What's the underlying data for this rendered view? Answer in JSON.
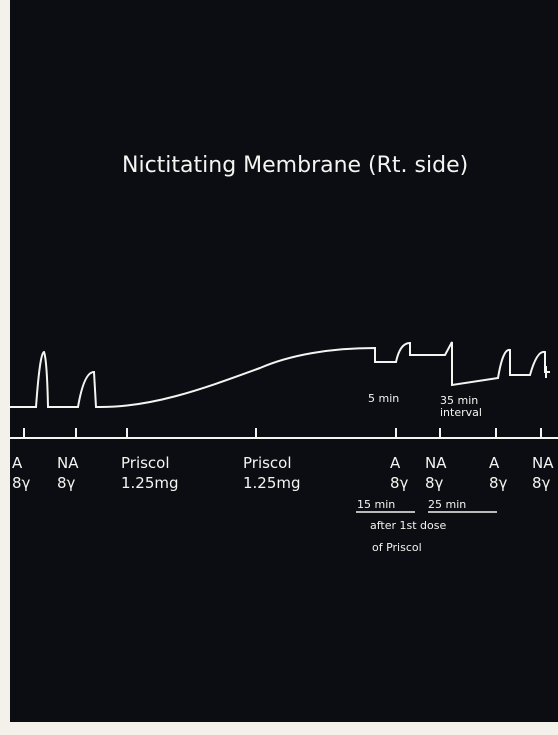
{
  "title": "Nictitating Membrane (Rt. side)",
  "events": [
    {
      "drug": "A",
      "dose": "8γ"
    },
    {
      "drug": "NA",
      "dose": "8γ"
    },
    {
      "drug": "Priscol",
      "dose": "1.25mg"
    },
    {
      "drug": "Priscol",
      "dose": "1.25mg"
    },
    {
      "drug": "A",
      "dose": "8γ"
    },
    {
      "drug": "NA",
      "dose": "8γ"
    },
    {
      "drug": "A",
      "dose": "8γ"
    },
    {
      "drug": "NA",
      "dose": "8γ"
    }
  ],
  "annotations": [
    "5 min",
    "35 min",
    "interval",
    "15 min",
    "25 min",
    "after 1st dose",
    "of Priscol"
  ]
}
